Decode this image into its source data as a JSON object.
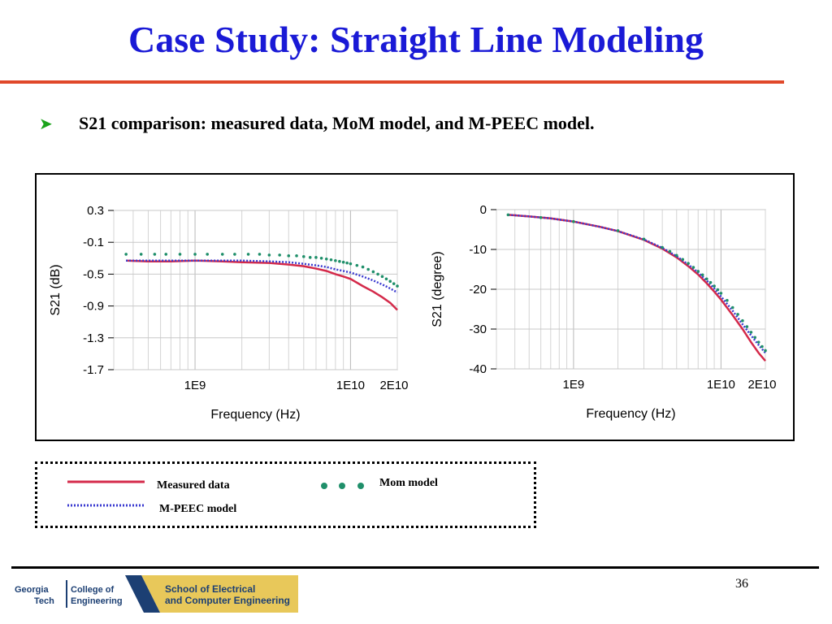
{
  "slide": {
    "title": "Case Study: Straight Line Modeling",
    "bullet": "S21 comparison: measured data, MoM model, and M-PEEC model.",
    "page_number": "36"
  },
  "legend": {
    "measured": "Measured data",
    "mpeec": "M-PEEC model",
    "mom": "Mom model"
  },
  "logo": {
    "line1a": "Georgia",
    "line1b": "College of",
    "line2a": "Tech",
    "line2b": "Engineering",
    "school1": "School of Electrical",
    "school2": "and Computer Engineering"
  },
  "colors": {
    "title": "#1a1ad6",
    "rule": "#e0482a",
    "measured": "#d42a4a",
    "mpeec": "#3a3ad0",
    "mom": "#1f8f6a",
    "bullet": "#1aa31a",
    "logo_gold": "#e8c85a",
    "logo_navy": "#1c3f73"
  },
  "chart_data": [
    {
      "type": "line",
      "xscale": "log",
      "xlabel": "Frequency (Hz)",
      "ylabel": "S21 (dB)",
      "xlim": [
        300000000,
        20000000000
      ],
      "ylim": [
        -1.7,
        0.3
      ],
      "xticks": [
        1000000000,
        10000000000,
        20000000000
      ],
      "xtick_labels": [
        "1E9",
        "1E10",
        "2E10"
      ],
      "yticks": [
        0.3,
        -0.1,
        -0.5,
        -0.9,
        -1.3,
        -1.7
      ],
      "ytick_labels": [
        "0.3",
        "-0.1",
        "-0.5",
        "-0.9",
        "-1.3",
        "-1.7"
      ],
      "grid": true,
      "series": [
        {
          "name": "Measured data",
          "style": "line",
          "x": [
            360000000,
            500000000,
            700000000,
            1000000000,
            1500000000,
            2000000000,
            3000000000,
            4000000000,
            5000000000,
            6000000000,
            7000000000,
            8000000000,
            9000000000,
            10000000000,
            12000000000,
            14000000000,
            16000000000,
            18000000000,
            20000000000
          ],
          "y": [
            -0.33,
            -0.34,
            -0.34,
            -0.33,
            -0.34,
            -0.35,
            -0.36,
            -0.38,
            -0.4,
            -0.43,
            -0.46,
            -0.5,
            -0.53,
            -0.56,
            -0.65,
            -0.72,
            -0.79,
            -0.86,
            -0.95
          ]
        },
        {
          "name": "M-PEEC model",
          "style": "dotted",
          "x": [
            360000000,
            500000000,
            700000000,
            1000000000,
            1500000000,
            2000000000,
            3000000000,
            4000000000,
            5000000000,
            6000000000,
            7000000000,
            8000000000,
            9000000000,
            10000000000,
            12000000000,
            14000000000,
            16000000000,
            18000000000,
            20000000000
          ],
          "y": [
            -0.33,
            -0.33,
            -0.33,
            -0.33,
            -0.33,
            -0.33,
            -0.34,
            -0.35,
            -0.37,
            -0.39,
            -0.41,
            -0.44,
            -0.46,
            -0.48,
            -0.53,
            -0.58,
            -0.63,
            -0.68,
            -0.73
          ]
        },
        {
          "name": "Mom model",
          "style": "markers",
          "x": [
            360000000,
            450000000,
            550000000,
            650000000,
            800000000,
            1000000000,
            1200000000,
            1500000000,
            1800000000,
            2200000000,
            2600000000,
            3000000000,
            3500000000,
            4000000000,
            4500000000,
            5000000000,
            5500000000,
            6000000000,
            6500000000,
            7000000000,
            7500000000,
            8000000000,
            8500000000,
            9000000000,
            9500000000,
            10000000000,
            11000000000,
            12000000000,
            13000000000,
            14000000000,
            15000000000,
            16000000000,
            17000000000,
            18000000000,
            19000000000,
            20000000000
          ],
          "y": [
            -0.25,
            -0.25,
            -0.25,
            -0.25,
            -0.25,
            -0.25,
            -0.25,
            -0.25,
            -0.25,
            -0.25,
            -0.25,
            -0.26,
            -0.26,
            -0.27,
            -0.27,
            -0.28,
            -0.29,
            -0.29,
            -0.3,
            -0.31,
            -0.32,
            -0.33,
            -0.34,
            -0.35,
            -0.36,
            -0.37,
            -0.39,
            -0.41,
            -0.44,
            -0.47,
            -0.5,
            -0.53,
            -0.56,
            -0.59,
            -0.62,
            -0.65
          ]
        }
      ]
    },
    {
      "type": "line",
      "xscale": "log",
      "xlabel": "Frequency (Hz)",
      "ylabel": "S21 (degree)",
      "xlim": [
        300000000,
        20000000000
      ],
      "ylim": [
        -40,
        0
      ],
      "xticks": [
        1000000000,
        10000000000,
        20000000000
      ],
      "xtick_labels": [
        "1E9",
        "1E10",
        "2E10"
      ],
      "yticks": [
        0,
        -10,
        -20,
        -30,
        -40
      ],
      "ytick_labels": [
        "0",
        "-10",
        "-20",
        "-30",
        "-40"
      ],
      "grid": true,
      "series": [
        {
          "name": "Measured data",
          "style": "line",
          "x": [
            360000000,
            500000000,
            700000000,
            1000000000,
            1500000000,
            2000000000,
            3000000000,
            4000000000,
            5000000000,
            6000000000,
            7000000000,
            8000000000,
            9000000000,
            10000000000,
            12000000000,
            14000000000,
            16000000000,
            18000000000,
            20000000000
          ],
          "y": [
            -1.3,
            -1.7,
            -2.2,
            -3.0,
            -4.3,
            -5.4,
            -7.6,
            -9.8,
            -12.0,
            -14.2,
            -16.3,
            -18.5,
            -20.6,
            -22.6,
            -26.5,
            -30.0,
            -33.3,
            -36.0,
            -38.0
          ]
        },
        {
          "name": "M-PEEC model",
          "style": "dotted",
          "x": [
            360000000,
            500000000,
            700000000,
            1000000000,
            1500000000,
            2000000000,
            3000000000,
            4000000000,
            5000000000,
            6000000000,
            7000000000,
            8000000000,
            9000000000,
            10000000000,
            12000000000,
            14000000000,
            16000000000,
            18000000000,
            20000000000
          ],
          "y": [
            -1.3,
            -1.7,
            -2.2,
            -3.0,
            -4.3,
            -5.4,
            -7.5,
            -9.6,
            -11.7,
            -13.8,
            -15.8,
            -17.8,
            -19.8,
            -21.8,
            -25.4,
            -28.8,
            -31.6,
            -34.0,
            -36.0
          ]
        },
        {
          "name": "Mom model",
          "style": "markers",
          "x": [
            360000000,
            600000000,
            1000000000,
            2000000000,
            3000000000,
            4000000000,
            4500000000,
            5000000000,
            5500000000,
            6000000000,
            6500000000,
            7000000000,
            7500000000,
            8000000000,
            8500000000,
            9000000000,
            9500000000,
            10000000000,
            11000000000,
            12000000000,
            13000000000,
            14000000000,
            15000000000,
            16000000000,
            17000000000,
            18000000000,
            19000000000,
            20000000000
          ],
          "y": [
            -1.3,
            -2.0,
            -3.0,
            -5.3,
            -7.4,
            -9.5,
            -10.5,
            -11.5,
            -12.5,
            -13.5,
            -14.5,
            -15.5,
            -16.4,
            -17.4,
            -18.3,
            -19.2,
            -20.1,
            -21.0,
            -22.8,
            -24.6,
            -26.3,
            -27.9,
            -29.4,
            -30.8,
            -32.1,
            -33.3,
            -34.4,
            -35.4
          ]
        }
      ]
    }
  ]
}
